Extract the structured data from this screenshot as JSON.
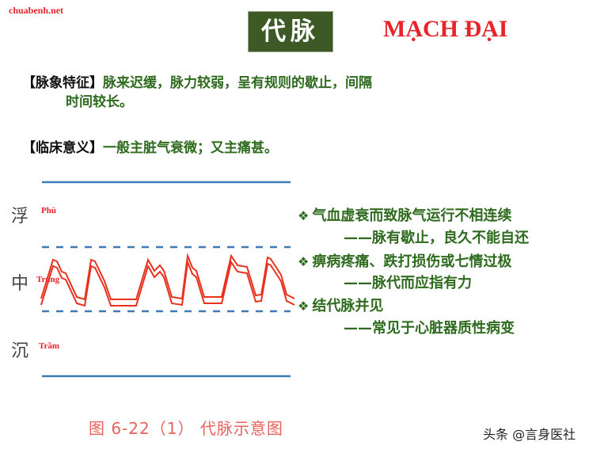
{
  "watermark": "chuabenh.net",
  "title": {
    "chinese": "代脉",
    "vietnamese": "MẠCH ĐẠI"
  },
  "features": {
    "label": "【脉象特征】",
    "text_line1": "脉来迟缓，脉力较弱，呈有规则的歇止，间隔",
    "text_line2": "时间较长。"
  },
  "clinical": {
    "label": "【临床意义】",
    "text": "一般主脏气衰微；又主痛甚。"
  },
  "diagram": {
    "levels": [
      {
        "chinese": "浮",
        "vietnamese": "Phù"
      },
      {
        "chinese": "中",
        "vietnamese": "Trung"
      },
      {
        "chinese": "沉",
        "vietnamese": "Trầm"
      }
    ],
    "caption": "图 6-22（1） 代脉示意图",
    "colors": {
      "wave": "#e8321e",
      "lines": "#3c7ab8"
    }
  },
  "bullets": [
    {
      "icon": "diamond-bullet-icon",
      "main": "气血虚衰而致脉气运行不相连续",
      "sub": "——脉有歇止，良久不能自还"
    },
    {
      "icon": "diamond-bullet-icon",
      "main": "痹病疼痛、跌打损伤或七情过极",
      "sub": "——脉代而应指有力"
    },
    {
      "icon": "diamond-bullet-icon",
      "main": "结代脉并见",
      "sub": "——常见于心脏器质性病变"
    }
  ],
  "credit": "头条 @言身医社",
  "colors": {
    "title_bg": "#3d5a26",
    "accent_red": "#e8232a",
    "text_green": "#2e6b1e"
  }
}
